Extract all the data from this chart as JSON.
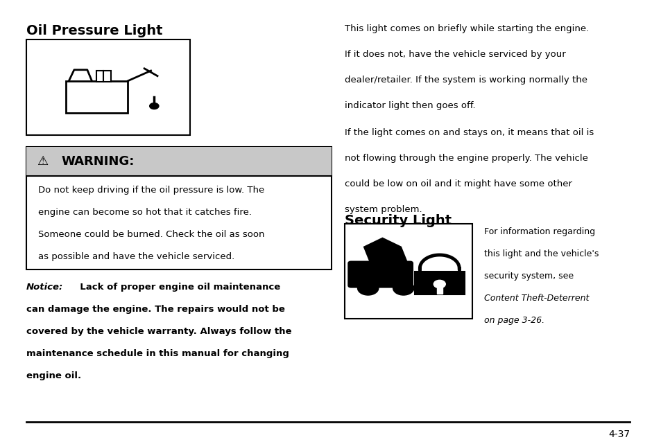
{
  "bg_color": "#ffffff",
  "text_color": "#000000",
  "title1": "Oil Pressure Light",
  "title2": "Security Light",
  "para1_line1": "This light comes on briefly while starting the engine.",
  "para1_line2": "If it does not, have the vehicle serviced by your",
  "para1_line3": "dealer/retailer. If the system is working normally the",
  "para1_line4": "indicator light then goes off.",
  "para2_line1": "If the light comes on and stays on, it means that oil is",
  "para2_line2": "not flowing through the engine properly. The vehicle",
  "para2_line3": "could be low on oil and it might have some other",
  "para2_line4": "system problem.",
  "warning_body_line1": "Do not keep driving if the oil pressure is low. The",
  "warning_body_line2": "engine can become so hot that it catches fire.",
  "warning_body_line3": "Someone could be burned. Check the oil as soon",
  "warning_body_line4": "as possible and have the vehicle serviced.",
  "notice_label": "Notice:",
  "notice_rest_line1": "  Lack of proper engine oil maintenance",
  "notice_line2": "can damage the engine. The repairs would not be",
  "notice_line3": "covered by the vehicle warranty. Always follow the",
  "notice_line4": "maintenance schedule in this manual for changing",
  "notice_line5": "engine oil.",
  "security_text_line1": "For information regarding",
  "security_text_line2": "this light and the vehicle's",
  "security_text_line3": "security system, see",
  "security_text_line4": "Content Theft-Deterrent",
  "security_text_line5": "on page 3-26.",
  "page_number": "4-37",
  "warning_bg": "#c8c8c8",
  "warning_border": "#000000"
}
